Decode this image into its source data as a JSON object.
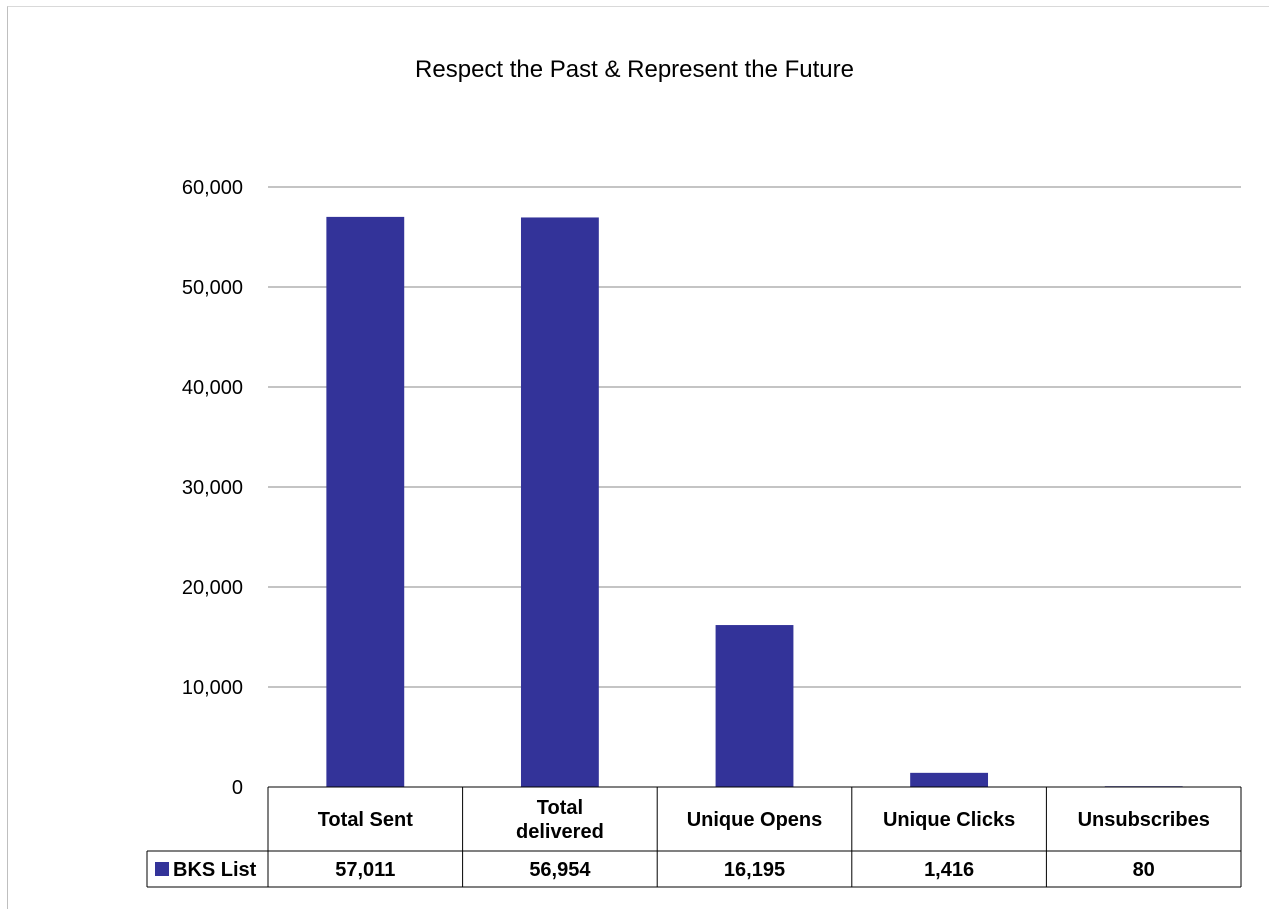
{
  "chart_data": {
    "type": "bar",
    "title": "Respect the Past & Represent the Future",
    "categories": [
      "Total Sent",
      "Total delivered",
      "Unique Opens",
      "Unique Clicks",
      "Unsubscribes"
    ],
    "category_lines": [
      [
        "Total Sent"
      ],
      [
        "Total",
        "delivered"
      ],
      [
        "Unique Opens"
      ],
      [
        "Unique Clicks"
      ],
      [
        "Unsubscribes"
      ]
    ],
    "series": [
      {
        "name": "BKS List",
        "color": "#333399",
        "values": [
          57011,
          56954,
          16195,
          1416,
          80
        ],
        "labels": [
          "57,011",
          "56,954",
          "16,195",
          "1,416",
          "80"
        ]
      }
    ],
    "ylim": [
      0,
      60000
    ],
    "yticks": [
      0,
      10000,
      20000,
      30000,
      40000,
      50000,
      60000
    ],
    "ytick_labels": [
      "0",
      "10,000",
      "20,000",
      "30,000",
      "40,000",
      "50,000",
      "60,000"
    ],
    "grid": true,
    "legend": "data-table",
    "xlabel": "",
    "ylabel": ""
  }
}
